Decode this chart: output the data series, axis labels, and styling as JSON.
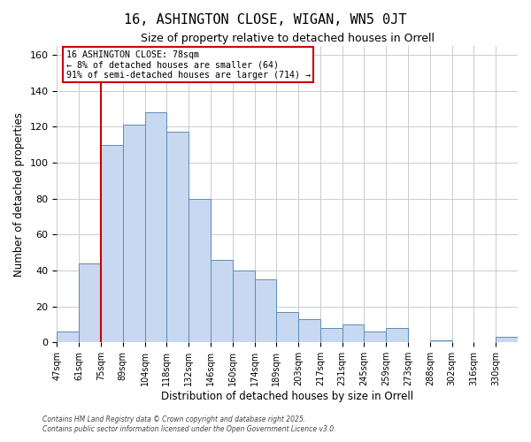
{
  "title1": "16, ASHINGTON CLOSE, WIGAN, WN5 0JT",
  "title2": "Size of property relative to detached houses in Orrell",
  "xlabel": "Distribution of detached houses by size in Orrell",
  "ylabel": "Number of detached properties",
  "categories": [
    "47sqm",
    "61sqm",
    "75sqm",
    "89sqm",
    "104sqm",
    "118sqm",
    "132sqm",
    "146sqm",
    "160sqm",
    "174sqm",
    "189sqm",
    "203sqm",
    "217sqm",
    "231sqm",
    "245sqm",
    "259sqm",
    "273sqm",
    "288sqm",
    "302sqm",
    "316sqm",
    "330sqm"
  ],
  "values": [
    6,
    44,
    110,
    121,
    128,
    117,
    80,
    46,
    40,
    35,
    17,
    13,
    8,
    10,
    6,
    8,
    0,
    1,
    0,
    0,
    3
  ],
  "bar_color": "#c8d8f0",
  "bar_edge_color": "#5b8db8",
  "vline_x_index": 2,
  "vline_color": "#cc0000",
  "annotation_title": "16 ASHINGTON CLOSE: 78sqm",
  "annotation_line1": "← 8% of detached houses are smaller (64)",
  "annotation_line2": "91% of semi-detached houses are larger (714) →",
  "ylim": [
    0,
    165
  ],
  "yticks": [
    0,
    20,
    40,
    60,
    80,
    100,
    120,
    140,
    160
  ],
  "background_color": "#ffffff",
  "grid_color": "#cccccc",
  "footer1": "Contains HM Land Registry data © Crown copyright and database right 2025.",
  "footer2": "Contains public sector information licensed under the Open Government Licence v3.0."
}
